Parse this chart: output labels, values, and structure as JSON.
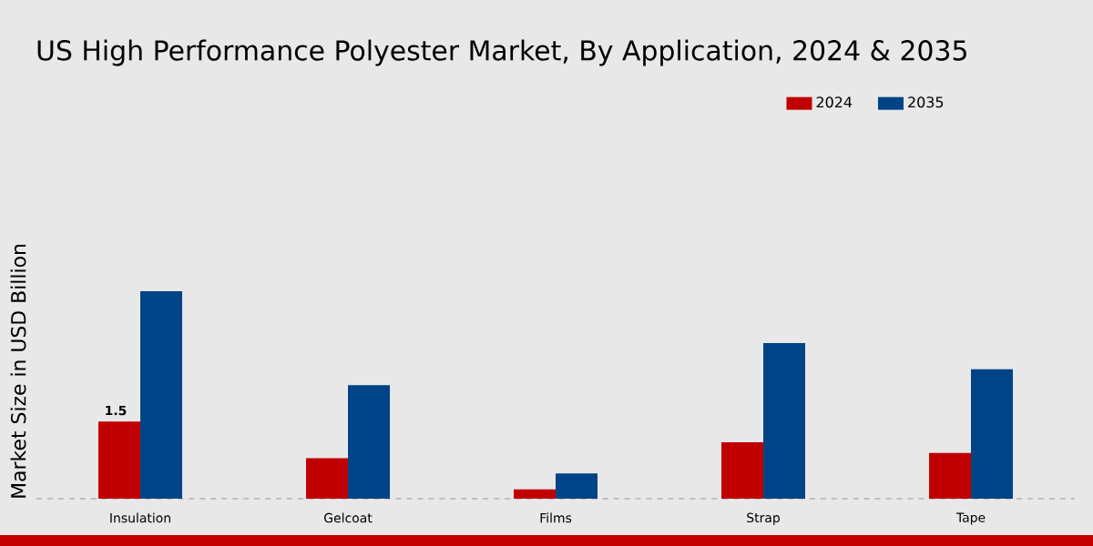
{
  "chart_data": {
    "type": "bar",
    "title": "US High Performance Polyester Market, By Application, 2024 & 2035",
    "ylabel": "Market Size in USD Billion",
    "categories": [
      "Insulation",
      "Gelcoat",
      "Films",
      "Strap",
      "Tape"
    ],
    "series": [
      {
        "name": "2024",
        "color": "#c00000",
        "values": [
          1.5,
          0.79,
          0.18,
          1.1,
          0.89
        ],
        "value_labels": [
          "1.5",
          null,
          null,
          null,
          null
        ]
      },
      {
        "name": "2035",
        "color": "#004487",
        "values": [
          4.04,
          2.21,
          0.49,
          3.03,
          2.52
        ]
      }
    ],
    "legend": "top right"
  }
}
